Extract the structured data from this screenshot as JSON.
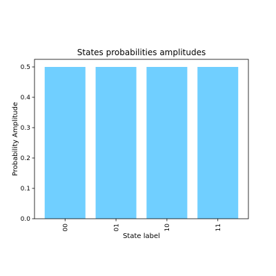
{
  "chart_data": {
    "type": "bar",
    "title": "States probabilities amplitudes",
    "xlabel": "State label",
    "ylabel": "Probability Amplitude",
    "categories": [
      "00",
      "01",
      "10",
      "11"
    ],
    "values": [
      0.5,
      0.5,
      0.5,
      0.5
    ],
    "ylim": [
      0,
      0.525
    ],
    "yticks": [
      "0.0",
      "0.1",
      "0.2",
      "0.3",
      "0.4",
      "0.5"
    ],
    "bar_color": "#70CFFF",
    "grid": false,
    "x_tick_rotation": "vertical"
  }
}
